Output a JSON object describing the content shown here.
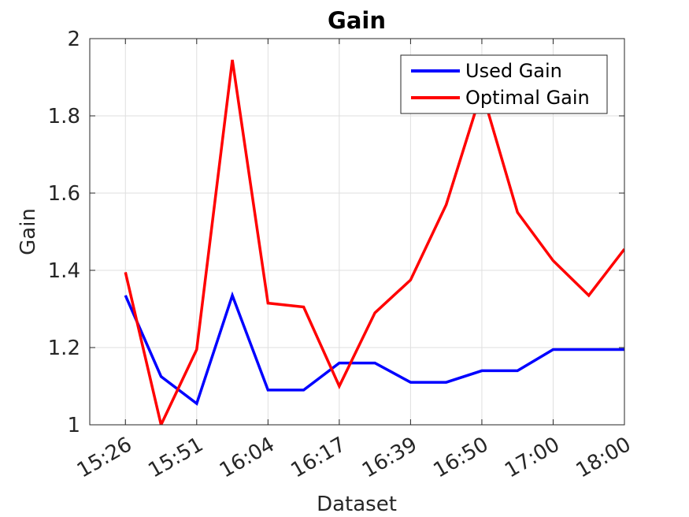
{
  "chart_data": {
    "type": "line",
    "title": "Gain",
    "xlabel": "Dataset",
    "ylabel": "Gain",
    "categories": [
      "15:26",
      "",
      "15:51",
      "",
      "16:04",
      "",
      "16:17",
      "",
      "16:39",
      "",
      "16:50",
      "",
      "17:00",
      "",
      "18:00"
    ],
    "x_tick_labels": [
      "15:26",
      "15:51",
      "16:04",
      "16:17",
      "16:39",
      "16:50",
      "17:00",
      "18:00"
    ],
    "x_tick_indices": [
      0,
      2,
      4,
      6,
      8,
      10,
      12,
      14
    ],
    "xlim": [
      -1,
      14
    ],
    "ylim": [
      1,
      2
    ],
    "y_ticks": [
      "1",
      "1.2",
      "1.4",
      "1.6",
      "1.8",
      "2"
    ],
    "grid": true,
    "legend_position": "top-right",
    "series": [
      {
        "name": "Used Gain",
        "color": "#0000ff",
        "values": [
          1.335,
          1.125,
          1.055,
          1.335,
          1.09,
          1.09,
          1.16,
          1.16,
          1.11,
          1.11,
          1.14,
          1.14,
          1.195,
          1.195,
          1.195
        ]
      },
      {
        "name": "Optimal Gain",
        "color": "#ff0000",
        "values": [
          1.395,
          1.0,
          1.195,
          1.945,
          1.315,
          1.305,
          1.1,
          1.29,
          1.375,
          1.57,
          1.865,
          1.55,
          1.425,
          1.335,
          1.455
        ]
      }
    ]
  }
}
